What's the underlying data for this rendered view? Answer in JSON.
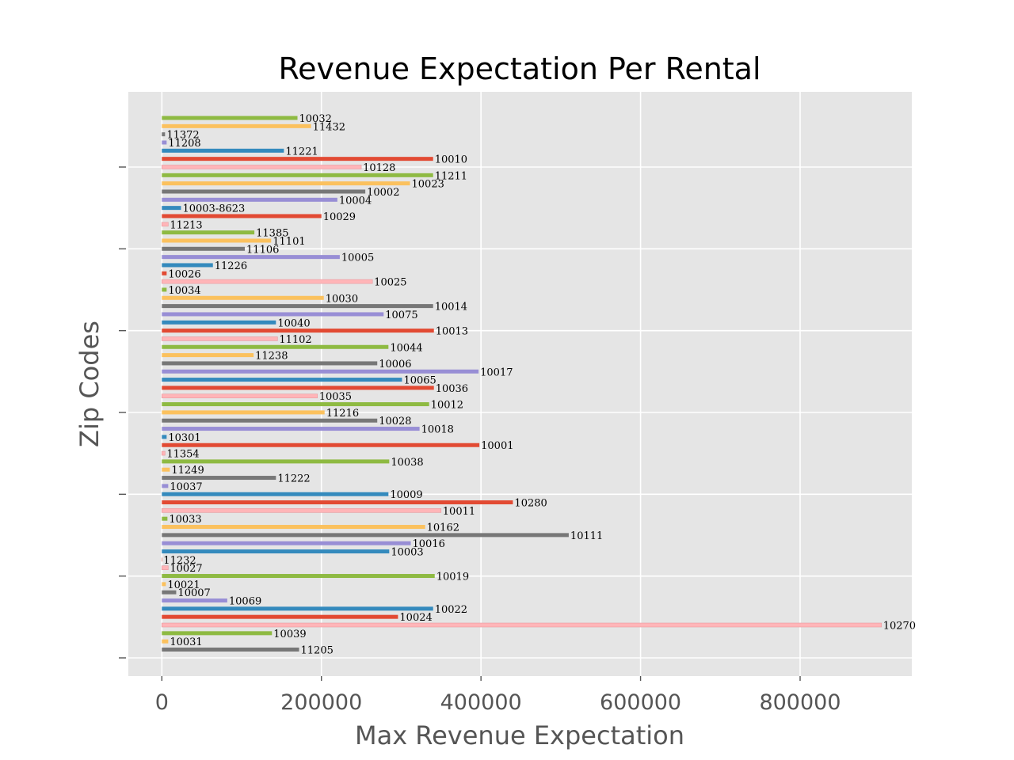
{
  "chart_data": {
    "type": "bar",
    "orientation": "horizontal",
    "title": "Revenue Expectation Per Rental",
    "xlabel": "Max Revenue Expectation",
    "ylabel": "Zip Codes",
    "xlim": [
      -42000,
      940000
    ],
    "xticks": [
      0,
      200000,
      400000,
      600000,
      800000
    ],
    "xtick_labels": [
      "0",
      "200000",
      "400000",
      "600000",
      "800000"
    ],
    "ytick_count": 7,
    "grid": true,
    "style": "ggplot",
    "palette": [
      "#777777",
      "#FBC15E",
      "#8EBA42",
      "#FFB5B8",
      "#E24A33",
      "#348ABD",
      "#988ED5"
    ],
    "categories": [
      "11205",
      "10031",
      "10039",
      "10270",
      "10024",
      "10022",
      "10069",
      "10007",
      "10021",
      "10019",
      "10027",
      "11232",
      "10003",
      "10016",
      "10111",
      "10162",
      "10033",
      "10011",
      "10280",
      "10009",
      "10037",
      "11222",
      "11249",
      "10038",
      "11354",
      "10001",
      "10301",
      "10018",
      "10028",
      "11216",
      "10012",
      "10035",
      "10036",
      "10065",
      "10017",
      "10006",
      "11238",
      "10044",
      "11102",
      "10013",
      "10040",
      "10075",
      "10014",
      "10030",
      "10034",
      "10025",
      "10026",
      "11226",
      "10005",
      "11106",
      "11101",
      "11385",
      "11213",
      "10029",
      "10003-8623",
      "10004",
      "10002",
      "10023",
      "11211",
      "10128",
      "10010",
      "11221",
      "11208",
      "11372",
      "11432",
      "10032"
    ],
    "values": [
      172000,
      8000,
      138000,
      902000,
      296000,
      340000,
      82000,
      18000,
      5000,
      342000,
      8000,
      0,
      285000,
      312000,
      510000,
      330000,
      7000,
      350000,
      440000,
      284000,
      8000,
      143000,
      10000,
      285000,
      4000,
      398000,
      6000,
      323000,
      270000,
      204000,
      335000,
      195000,
      341000,
      301000,
      397000,
      270000,
      115000,
      284000,
      145000,
      341000,
      143000,
      278000,
      340000,
      203000,
      6000,
      264000,
      6000,
      64000,
      223000,
      104000,
      137000,
      116000,
      8000,
      200000,
      24000,
      220000,
      255000,
      311000,
      340000,
      250000,
      340000,
      153000,
      6000,
      4000,
      187000,
      170000
    ]
  }
}
